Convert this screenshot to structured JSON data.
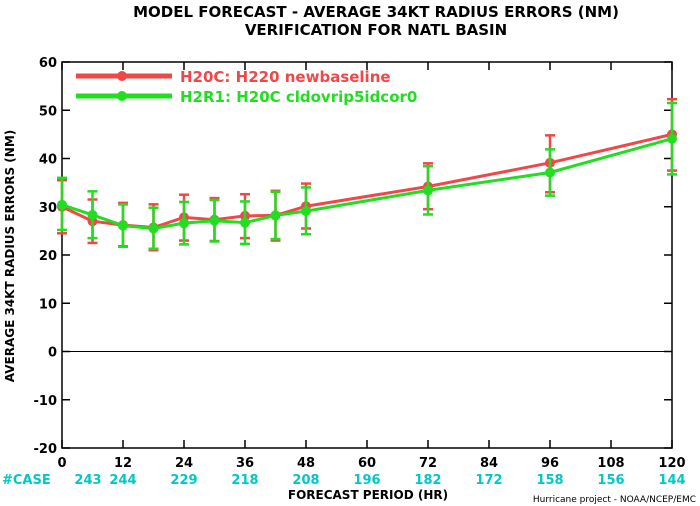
{
  "chart_data": {
    "type": "line",
    "title": "MODEL FORECAST - AVERAGE 34KT RADIUS ERRORS (NM)",
    "subtitle": "VERIFICATION FOR NATL BASIN",
    "xlabel": "FORECAST PERIOD (HR)",
    "ylabel": "AVERAGE 34KT RADIUS ERRORS (NM)",
    "xlim": [
      0,
      120
    ],
    "ylim": [
      -20,
      60
    ],
    "x_ticks": [
      0,
      12,
      24,
      36,
      48,
      60,
      72,
      84,
      96,
      108,
      120
    ],
    "y_ticks": [
      -20,
      -10,
      0,
      10,
      20,
      30,
      40,
      50,
      60
    ],
    "zero_line": true,
    "legend_position": "top-left",
    "cases_label": "#CASE",
    "cases": [
      "243",
      "244",
      "229",
      "218",
      "208",
      "196",
      "182",
      "172",
      "158",
      "156",
      "144"
    ],
    "cases_color": "#00c8c8",
    "credit": "Hurricane project - NOAA/NCEP/EMC",
    "x": [
      0,
      6,
      12,
      18,
      24,
      30,
      36,
      42,
      48,
      72,
      96,
      120
    ],
    "series": [
      {
        "name": "H20C: H220 newbaseline",
        "color": "#f04848",
        "values": [
          30,
          27,
          26.2,
          25.7,
          27.8,
          27.3,
          28.1,
          28.2,
          30.1,
          34.2,
          39.1,
          45
        ],
        "lower": [
          24.5,
          22.5,
          21.8,
          21,
          23,
          22.9,
          23.5,
          23,
          25.5,
          29.5,
          33,
          37.5
        ],
        "upper": [
          35.5,
          31.5,
          30.8,
          30.5,
          32.5,
          31.8,
          32.6,
          33.3,
          34.8,
          39,
          44.8,
          52.3
        ]
      },
      {
        "name": "H2R1: H20C cldovrip5idcor0",
        "color": "#22dd22",
        "values": [
          30.4,
          28.3,
          26.1,
          25.5,
          26.6,
          27.1,
          26.7,
          28.2,
          29.1,
          33.4,
          37.1,
          44.1
        ],
        "lower": [
          25.2,
          23.5,
          21.7,
          21.3,
          22.2,
          22.8,
          22.3,
          23.3,
          24.3,
          28.4,
          32.3,
          36.7
        ],
        "upper": [
          36,
          33.2,
          30.5,
          29.8,
          31,
          31.4,
          31.1,
          33.1,
          34,
          38.4,
          41.9,
          51.5
        ]
      }
    ]
  }
}
